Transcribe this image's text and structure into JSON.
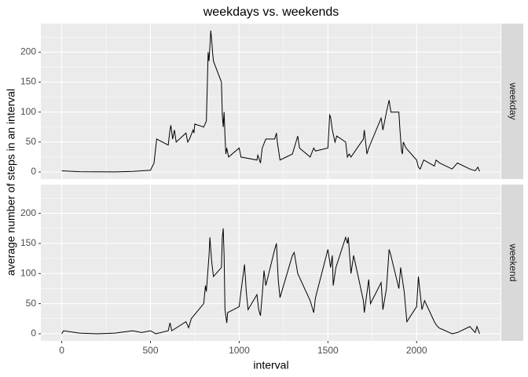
{
  "chart_data": {
    "type": "line",
    "title": "weekdays vs. weekends",
    "x_label": "interval",
    "y_label": "average number of steps in an interval",
    "xlim": [
      -117.75,
      2472.75
    ],
    "xticks": [
      0,
      500,
      1000,
      1500,
      2000
    ],
    "ylim": [
      -11.8,
      247.7
    ],
    "yticks": [
      0,
      50,
      100,
      150,
      200
    ],
    "grid": true,
    "series": [
      {
        "name": "weekday",
        "color": "#000000",
        "x": [
          0,
          100,
          200,
          300,
          400,
          450,
          500,
          520,
          535,
          600,
          610,
          615,
          625,
          635,
          645,
          700,
          710,
          720,
          740,
          745,
          750,
          800,
          815,
          825,
          830,
          835,
          840,
          845,
          850,
          855,
          900,
          905,
          910,
          915,
          920,
          925,
          930,
          940,
          1000,
          1010,
          1100,
          1105,
          1120,
          1130,
          1150,
          1200,
          1210,
          1215,
          1230,
          1300,
          1330,
          1340,
          1400,
          1420,
          1430,
          1500,
          1510,
          1515,
          1525,
          1540,
          1550,
          1600,
          1610,
          1620,
          1630,
          1700,
          1705,
          1720,
          1730,
          1800,
          1810,
          1830,
          1845,
          1855,
          1900,
          1905,
          1915,
          1920,
          1925,
          1940,
          2000,
          2010,
          2020,
          2040,
          2100,
          2110,
          2130,
          2200,
          2230,
          2300,
          2330,
          2345,
          2355
        ],
        "values": [
          2,
          0.5,
          0.3,
          0.2,
          1,
          2,
          3,
          15,
          55,
          45,
          70,
          78,
          55,
          70,
          50,
          65,
          50,
          55,
          70,
          65,
          80,
          75,
          85,
          200,
          185,
          210,
          236,
          220,
          200,
          185,
          150,
          95,
          75,
          100,
          60,
          30,
          40,
          25,
          40,
          25,
          20,
          28,
          15,
          40,
          55,
          55,
          65,
          50,
          20,
          30,
          60,
          40,
          25,
          40,
          35,
          40,
          95,
          92,
          70,
          50,
          60,
          50,
          25,
          30,
          25,
          55,
          70,
          30,
          40,
          90,
          70,
          100,
          120,
          100,
          100,
          75,
          35,
          30,
          50,
          40,
          20,
          8,
          5,
          20,
          10,
          20,
          15,
          5,
          15,
          5,
          2,
          8,
          1
        ]
      },
      {
        "name": "weekend",
        "color": "#000000",
        "x": [
          0,
          10,
          100,
          200,
          300,
          400,
          450,
          500,
          530,
          600,
          610,
          620,
          700,
          715,
          730,
          800,
          810,
          815,
          830,
          835,
          845,
          855,
          900,
          905,
          910,
          915,
          920,
          930,
          935,
          1000,
          1010,
          1030,
          1040,
          1050,
          1100,
          1110,
          1120,
          1130,
          1140,
          1150,
          1200,
          1210,
          1220,
          1230,
          1300,
          1310,
          1330,
          1400,
          1420,
          1430,
          1500,
          1515,
          1525,
          1530,
          1545,
          1600,
          1610,
          1615,
          1630,
          1645,
          1700,
          1705,
          1730,
          1740,
          1800,
          1810,
          1830,
          1845,
          1855,
          1900,
          1910,
          1930,
          1945,
          2000,
          2010,
          2030,
          2045,
          2100,
          2110,
          2125,
          2200,
          2230,
          2300,
          2330,
          2340,
          2355
        ],
        "values": [
          0,
          5,
          1,
          0,
          1,
          5,
          2,
          5,
          0,
          5,
          18,
          5,
          20,
          10,
          25,
          50,
          80,
          70,
          130,
          160,
          120,
          95,
          110,
          160,
          175,
          130,
          40,
          18,
          35,
          45,
          70,
          115,
          70,
          40,
          65,
          40,
          30,
          65,
          105,
          80,
          140,
          150,
          90,
          60,
          130,
          135,
          100,
          55,
          35,
          60,
          140,
          110,
          130,
          80,
          110,
          160,
          150,
          160,
          100,
          130,
          55,
          35,
          90,
          50,
          85,
          40,
          75,
          140,
          130,
          75,
          110,
          70,
          20,
          45,
          95,
          40,
          55,
          20,
          15,
          10,
          0,
          2,
          12,
          2,
          12,
          0
        ]
      }
    ]
  }
}
